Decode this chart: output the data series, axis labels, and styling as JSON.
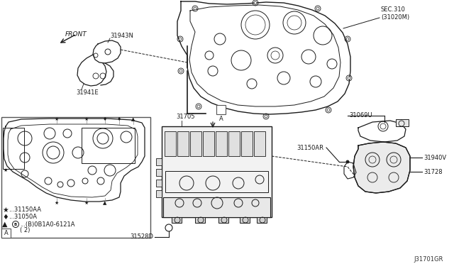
{
  "background_color": "#ffffff",
  "figure_id": "J31701GR",
  "labels": {
    "sec310": "SEC.310\n(31020M)",
    "31943N": "31943N",
    "31941E": "31941E",
    "31528D": "31528D",
    "31705": "31705",
    "31069U": "31069U",
    "31150AR": "31150AR",
    "31940V": "31940V",
    "31728": "31728",
    "legend_star": "...31150AA",
    "legend_diamond": "...31050A",
    "legend_triangle_part1": "...(B)0B1A0-6121A",
    "legend_triangle_part2": "( 2)",
    "front_label": "FRONT",
    "box_a_label": "A",
    "box_a2_label": "A"
  },
  "line_color": "#1a1a1a",
  "font_size": 6.5,
  "small_font": 6
}
